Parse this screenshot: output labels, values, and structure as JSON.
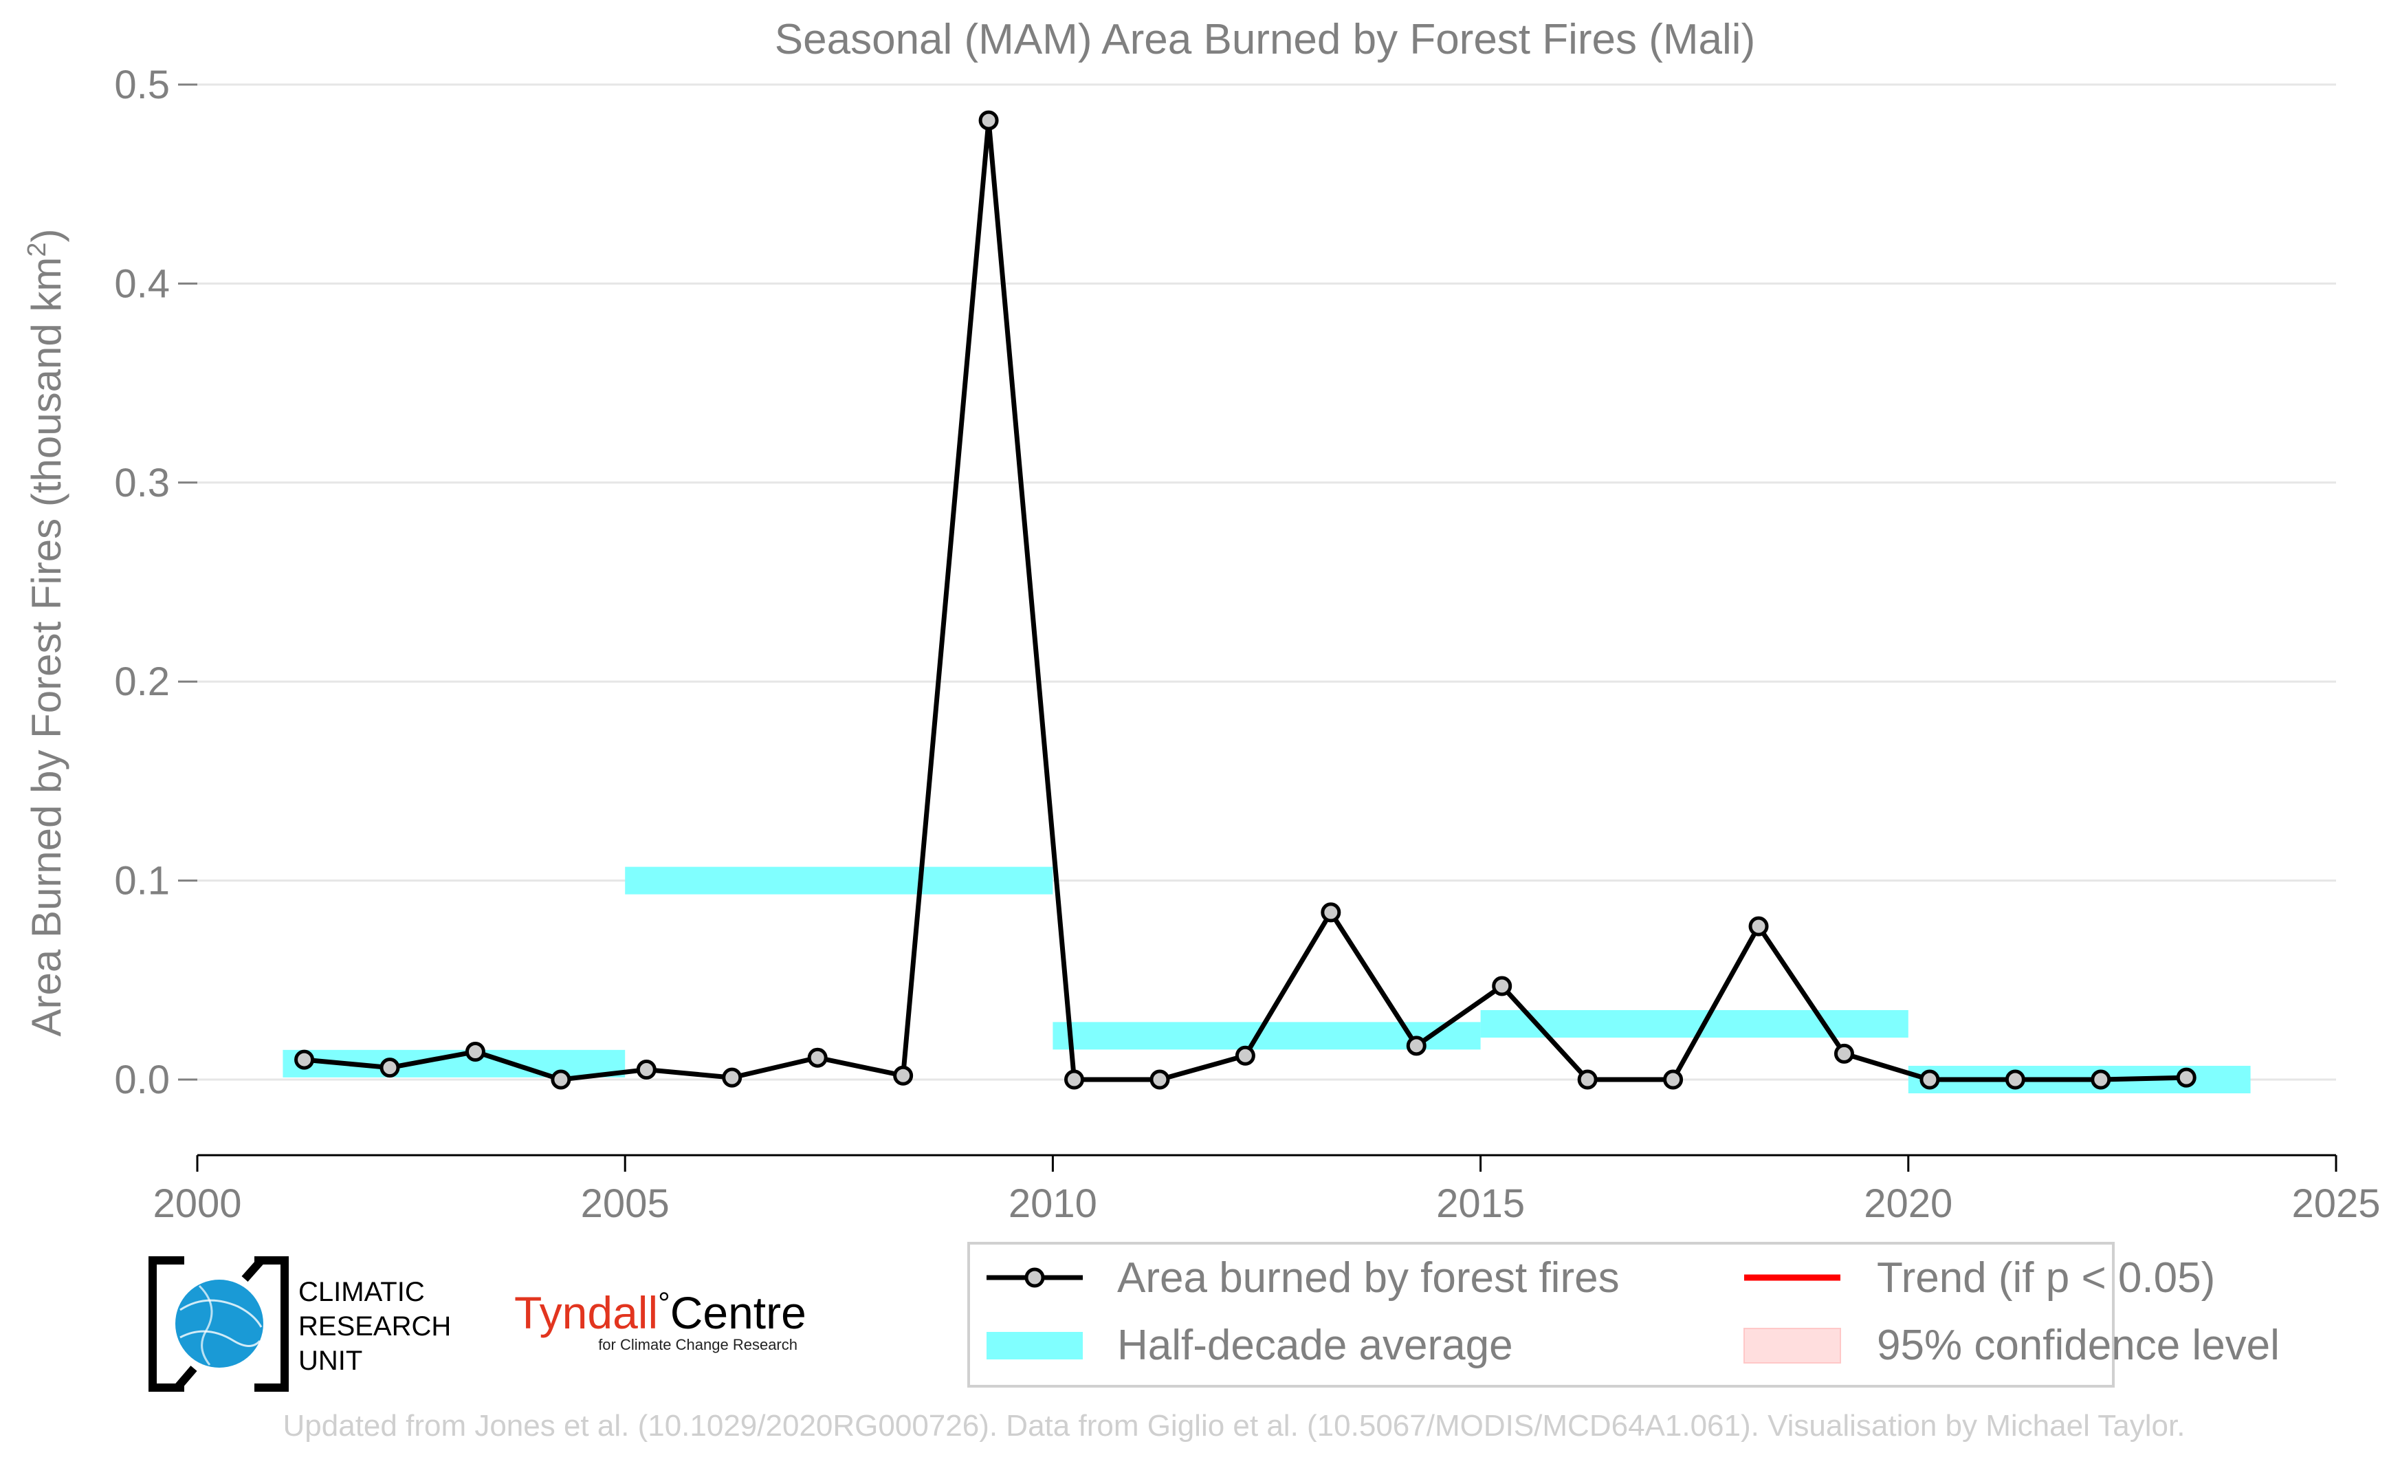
{
  "chart_data": {
    "type": "line",
    "title": "Seasonal (MAM) Area Burned by Forest Fires (Mali)",
    "xlabel": "",
    "ylabel": "Area Burned by Forest Fires (thousand km²)",
    "ylabel_main": "Area Burned by Forest Fires (thousand km",
    "ylabel_sup": "2",
    "ylabel_close": ")",
    "xlim": [
      2000,
      2025
    ],
    "ylim": [
      -0.038,
      0.5
    ],
    "xticks": [
      2000,
      2005,
      2010,
      2015,
      2020,
      2025
    ],
    "xtick_labels": [
      "2000",
      "2005",
      "2010",
      "2015",
      "2020",
      "2025"
    ],
    "yticks": [
      0.0,
      0.1,
      0.2,
      0.3,
      0.4,
      0.5
    ],
    "ytick_labels": [
      "0.0",
      "0.1",
      "0.2",
      "0.3",
      "0.4",
      "0.5"
    ],
    "grid": "horizontal",
    "series": [
      {
        "name": "Area burned by forest fires",
        "color": "#000000",
        "marker_fill": "#cccccc",
        "x": [
          2001.25,
          2002.25,
          2003.25,
          2004.25,
          2005.25,
          2006.25,
          2007.25,
          2008.25,
          2009.25,
          2010.25,
          2011.25,
          2012.25,
          2013.25,
          2014.25,
          2015.25,
          2016.25,
          2017.25,
          2018.25,
          2019.25,
          2020.25,
          2021.25,
          2022.25,
          2023.25
        ],
        "values": [
          0.01,
          0.006,
          0.014,
          0.0,
          0.005,
          0.001,
          0.011,
          0.002,
          0.482,
          0.0,
          0.0,
          0.012,
          0.084,
          0.017,
          0.047,
          0.0,
          0.0,
          0.077,
          0.013,
          0.0,
          0.0,
          0.0,
          0.001
        ]
      }
    ],
    "half_decade_average": {
      "name": "Half-decade average",
      "color": "#80ffff",
      "segments": [
        {
          "x0": 2001,
          "x1": 2005,
          "value": 0.008
        },
        {
          "x0": 2005,
          "x1": 2010,
          "value": 0.1
        },
        {
          "x0": 2010,
          "x1": 2015,
          "value": 0.022
        },
        {
          "x0": 2015,
          "x1": 2020,
          "value": 0.028
        },
        {
          "x0": 2020,
          "x1": 2024,
          "value": 0.0
        }
      ]
    },
    "legend_placement": "bottom-right",
    "legend": [
      {
        "label": "Area burned by forest fires",
        "kind": "line-marker",
        "color": "#000000"
      },
      {
        "label": "Trend (if p < 0.05)",
        "kind": "line",
        "color": "#ff0000"
      },
      {
        "label": "Half-decade average",
        "kind": "band",
        "color": "#80ffff"
      },
      {
        "label": "95% confidence level",
        "kind": "band",
        "color": "#ffdede"
      }
    ]
  },
  "logos": {
    "cru_lines": [
      "CLIMATIC",
      "RESEARCH",
      "UNIT"
    ],
    "tyndall_red": "Tyndall",
    "tyndall_degree": "°",
    "tyndall_black": "Centre",
    "tyndall_sub": "for Climate Change Research",
    "tyndall_color": "#e2351f",
    "cru_globe_color": "#1a9ad6"
  },
  "credit": "Updated from Jones et al. (10.1029/2020RG000726). Data from Giglio et al. (10.5067/MODIS/MCD64A1.061). Visualisation by Michael Taylor."
}
